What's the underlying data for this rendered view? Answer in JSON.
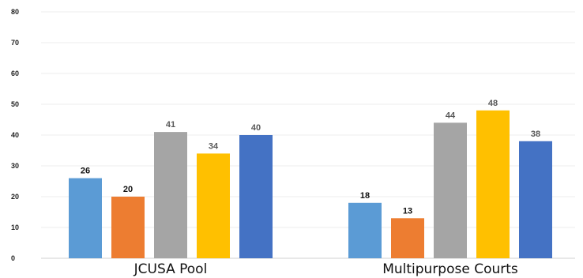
{
  "chart_data": {
    "type": "bar",
    "categories": [
      "JCUSA Pool",
      "Multipurpose Courts"
    ],
    "series": [
      {
        "values": [
          26,
          18
        ],
        "color": "#5B9BD5",
        "label_color": "#111111"
      },
      {
        "values": [
          20,
          13
        ],
        "color": "#ED7D31",
        "label_color": "#111111"
      },
      {
        "values": [
          41,
          44
        ],
        "color": "#A5A5A5",
        "label_color": "#595959"
      },
      {
        "values": [
          34,
          48
        ],
        "color": "#FFC000",
        "label_color": "#595959"
      },
      {
        "values": [
          40,
          38
        ],
        "color": "#4472C4",
        "label_color": "#595959"
      }
    ],
    "ylim": [
      0,
      80
    ],
    "yticks": [
      "0",
      "10",
      "20",
      "30",
      "40",
      "50",
      "60",
      "70",
      "80"
    ],
    "grid": true,
    "data_labels": true,
    "legend": "none"
  }
}
